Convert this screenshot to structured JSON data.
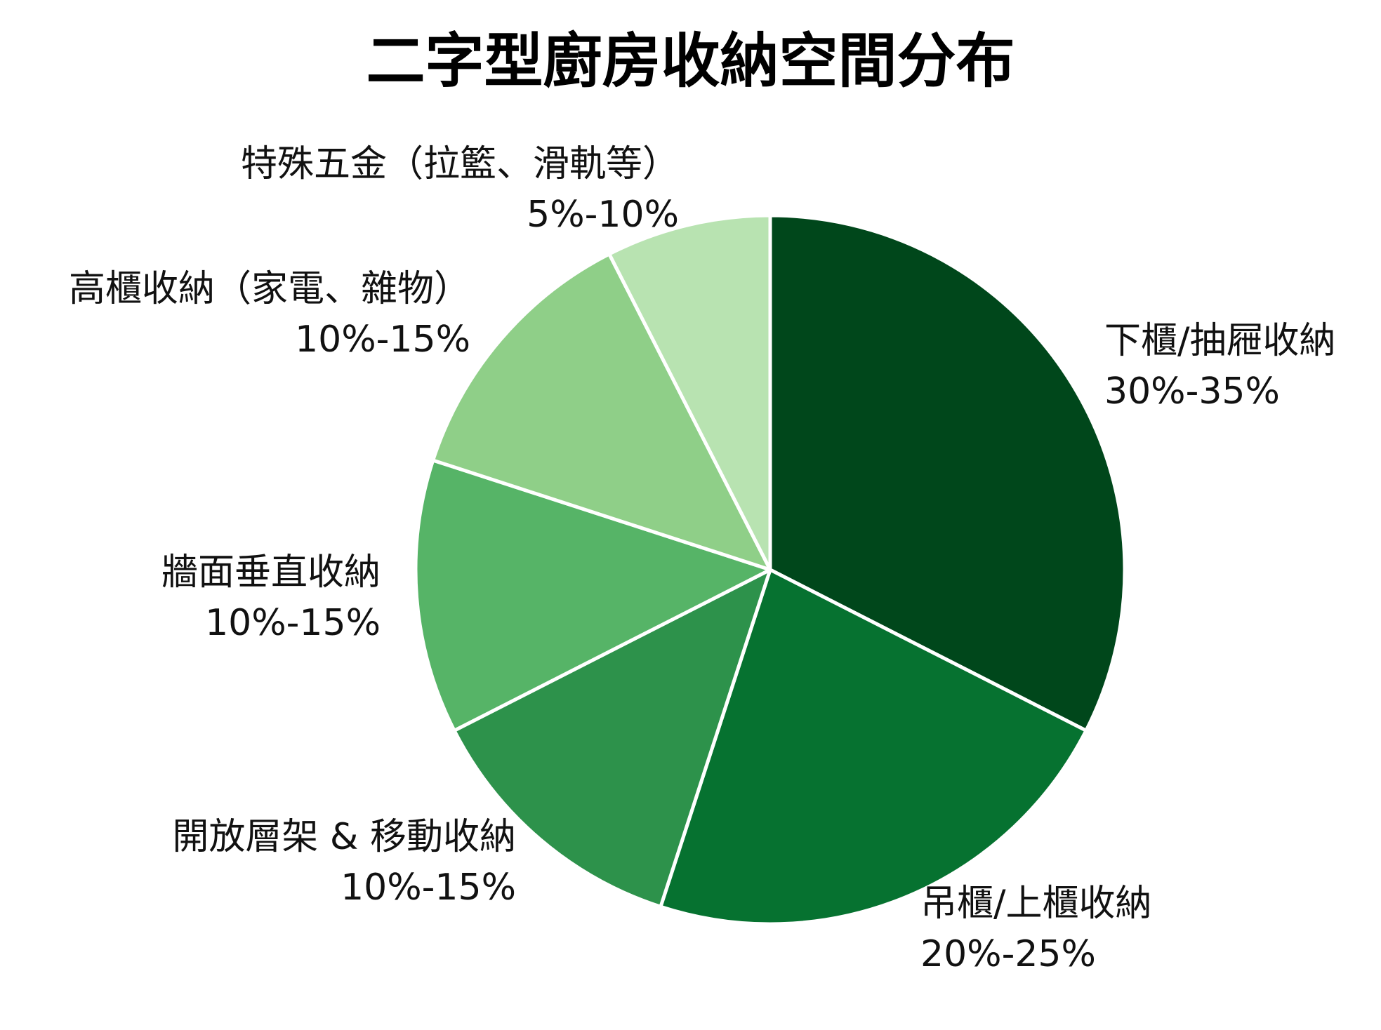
{
  "chart_data": {
    "type": "pie",
    "title": "二字型廚房收納空間分布",
    "start_angle_deg": 0,
    "direction": "clockwise",
    "slices": [
      {
        "label": "下櫃/抽屜收納",
        "range": "30%-35%",
        "value": 32.5,
        "color": "#00471b"
      },
      {
        "label": "吊櫃/上櫃收納",
        "range": "20%-25%",
        "value": 22.5,
        "color": "#067230"
      },
      {
        "label": "開放層架 & 移動收納",
        "range": "10%-15%",
        "value": 12.5,
        "color": "#2d924b"
      },
      {
        "label": "牆面垂直收納",
        "range": "10%-15%",
        "value": 12.5,
        "color": "#56b467"
      },
      {
        "label": "高櫃收納（家電、雜物）",
        "range": "10%-15%",
        "value": 12.5,
        "color": "#8fcf88"
      },
      {
        "label": "特殊五金（拉籃、滑軌等）",
        "range": "5%-10%",
        "value": 7.5,
        "color": "#b8e3b1"
      }
    ],
    "slice_border_color": "#ffffff",
    "legend": "none"
  }
}
